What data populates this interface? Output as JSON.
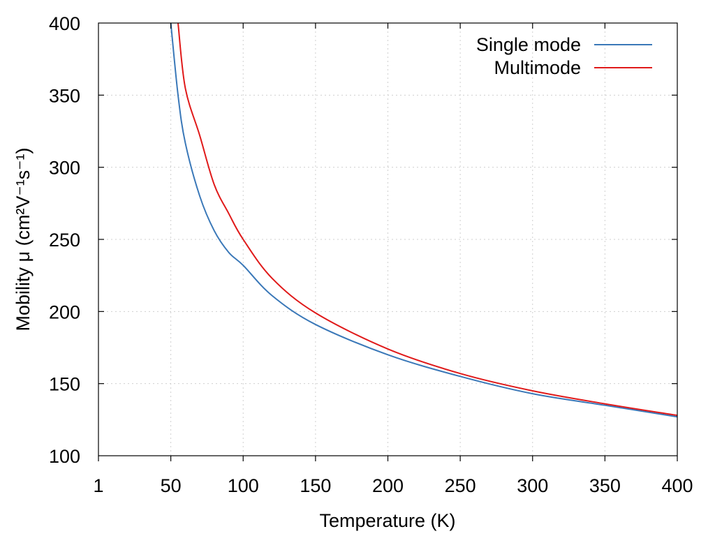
{
  "chart_data": {
    "type": "line",
    "xlabel": "Temperature (K)",
    "ylabel": "Mobility μ (cm²V⁻¹s⁻¹)",
    "xlim": [
      1,
      400
    ],
    "ylim": [
      100,
      400
    ],
    "xticks": [
      1,
      50,
      100,
      150,
      200,
      250,
      300,
      350,
      400
    ],
    "yticks": [
      100,
      150,
      200,
      250,
      300,
      350,
      400
    ],
    "grid": true,
    "legend_position": "top-right",
    "series": [
      {
        "name": "Single mode",
        "color": "#3a78b8",
        "x": [
          50,
          55,
          60,
          70,
          80,
          90,
          100,
          120,
          150,
          200,
          250,
          300,
          350,
          400
        ],
        "y": [
          400,
          350,
          317,
          280,
          256,
          241,
          232,
          211,
          191,
          170,
          155,
          143,
          135,
          127
        ]
      },
      {
        "name": "Multimode",
        "color": "#e01a1a",
        "x": [
          55,
          60,
          70,
          80,
          90,
          100,
          120,
          150,
          200,
          250,
          300,
          350,
          400
        ],
        "y": [
          400,
          355,
          322,
          288,
          268,
          250,
          223,
          199,
          174,
          157,
          145,
          136,
          128
        ]
      }
    ]
  }
}
